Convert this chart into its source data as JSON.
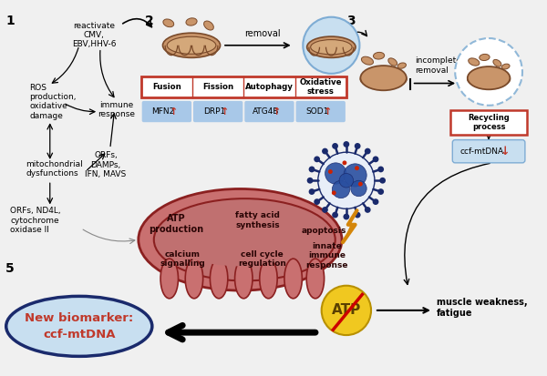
{
  "bg_color": "#f0f0f0",
  "mito_table": {
    "headers": [
      "Fusion",
      "Fission",
      "Autophagy",
      "Oxidative\nstress"
    ],
    "values": [
      "MFN2↑",
      "DRP1↑",
      "ATG4B↑",
      "SOD1↑"
    ],
    "header_border_color": "#c0392b",
    "cell_fill_color": "#a8c8e8",
    "header_bg": "#ffffff"
  },
  "colors": {
    "dark_navy": "#1a2a6c",
    "light_blue_fill": "#c8dff0",
    "red_text": "#c0392b",
    "dark_red_mito": "#8b2020",
    "mito_body": "#c9956a",
    "mito_edge": "#7a4a2a",
    "big_mito_fill": "#c97070",
    "big_mito_edge": "#8b2020",
    "virus_blue": "#1a3a7a",
    "virus_light": "#5a8ec0",
    "atp_yellow": "#f0c820",
    "atp_edge": "#b89000",
    "red_border": "#c0392b",
    "arrow_color": "#222222",
    "dashed_circle": "#90b8d8"
  }
}
